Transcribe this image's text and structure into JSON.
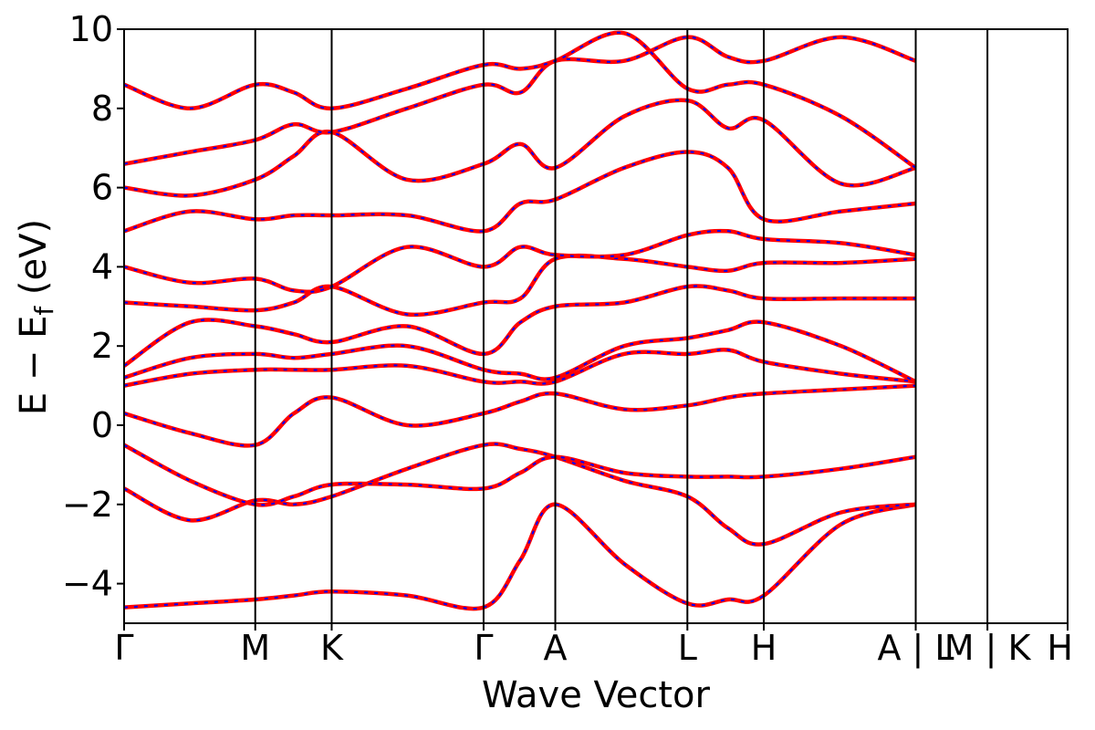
{
  "chart_data": {
    "type": "line",
    "title": "",
    "xlabel": "Wave Vector",
    "ylabel": {
      "main": "E − E",
      "subscript": "f",
      "unit": "(eV)"
    },
    "ylim": [
      -5,
      10
    ],
    "yticks": [
      {
        "value": 10,
        "label": "10"
      },
      {
        "value": 8,
        "label": "8"
      },
      {
        "value": 6,
        "label": "6"
      },
      {
        "value": 4,
        "label": "4"
      },
      {
        "value": 2,
        "label": "2"
      },
      {
        "value": 0,
        "label": "0"
      },
      {
        "value": -2,
        "label": "−2"
      },
      {
        "value": -4,
        "label": "−4"
      }
    ],
    "kpoints": [
      {
        "label": "Γ",
        "pos": 0.0
      },
      {
        "label": "M",
        "pos": 0.139
      },
      {
        "label": "K",
        "pos": 0.22
      },
      {
        "label": "Γ",
        "pos": 0.381
      },
      {
        "label": "A",
        "pos": 0.457
      },
      {
        "label": "L",
        "pos": 0.597
      },
      {
        "label": "H",
        "pos": 0.678
      },
      {
        "label": "A | L",
        "pos": 0.839
      },
      {
        "label": "M | K",
        "pos": 0.915
      },
      {
        "label": "H",
        "pos": 1.0
      }
    ],
    "grid": false,
    "legend": "none",
    "line_colors": {
      "primary": "#ff0000",
      "overlay": "#0000ff"
    },
    "bands": [
      {
        "name": "",
        "x": [
          0,
          0.07,
          0.139,
          0.18,
          0.22,
          0.3,
          0.381,
          0.42,
          0.457,
          0.53,
          0.597,
          0.64,
          0.678,
          0.76,
          0.839
        ],
        "y": [
          -4.6,
          -4.5,
          -4.4,
          -4.3,
          -4.2,
          -4.3,
          -4.6,
          -3.4,
          -2.0,
          -3.5,
          -4.5,
          -4.4,
          -4.3,
          -2.5,
          -2.0
        ]
      },
      {
        "name": "",
        "x": [
          0,
          0.07,
          0.139,
          0.18,
          0.22,
          0.3,
          0.381,
          0.42,
          0.457,
          0.53,
          0.597,
          0.64,
          0.678,
          0.76,
          0.839
        ],
        "y": [
          -1.6,
          -2.4,
          -1.9,
          -2.0,
          -1.8,
          -1.1,
          -0.5,
          -0.6,
          -0.8,
          -1.4,
          -1.8,
          -2.6,
          -3.0,
          -2.2,
          -2.0
        ]
      },
      {
        "name": "",
        "x": [
          0,
          0.07,
          0.139,
          0.18,
          0.22,
          0.3,
          0.381,
          0.42,
          0.457,
          0.53,
          0.597,
          0.64,
          0.678,
          0.76,
          0.839
        ],
        "y": [
          -0.5,
          -1.4,
          -2.0,
          -1.8,
          -1.5,
          -1.5,
          -1.6,
          -1.2,
          -0.8,
          -1.2,
          -1.3,
          -1.3,
          -1.3,
          -1.1,
          -0.8
        ]
      },
      {
        "name": "",
        "x": [
          0,
          0.07,
          0.139,
          0.18,
          0.22,
          0.3,
          0.381,
          0.42,
          0.457,
          0.53,
          0.597,
          0.64,
          0.678,
          0.76,
          0.839
        ],
        "y": [
          0.3,
          -0.2,
          -0.5,
          0.3,
          0.7,
          0.0,
          0.3,
          0.6,
          0.8,
          0.4,
          0.5,
          0.7,
          0.8,
          0.9,
          1.0
        ]
      },
      {
        "name": "",
        "x": [
          0,
          0.07,
          0.139,
          0.18,
          0.22,
          0.3,
          0.381,
          0.42,
          0.457,
          0.53,
          0.597,
          0.64,
          0.678,
          0.76,
          0.839
        ],
        "y": [
          1.0,
          1.3,
          1.4,
          1.4,
          1.4,
          1.5,
          1.1,
          1.1,
          1.1,
          1.8,
          1.8,
          1.9,
          1.6,
          1.3,
          1.1
        ]
      },
      {
        "name": "",
        "x": [
          0,
          0.07,
          0.139,
          0.18,
          0.22,
          0.3,
          0.381,
          0.42,
          0.457,
          0.53,
          0.597,
          0.64,
          0.678,
          0.76,
          0.839
        ],
        "y": [
          1.2,
          1.7,
          1.8,
          1.7,
          1.8,
          2.0,
          1.4,
          1.3,
          1.2,
          2.0,
          2.2,
          2.4,
          2.6,
          2.0,
          1.1
        ]
      },
      {
        "name": "",
        "x": [
          0,
          0.07,
          0.139,
          0.18,
          0.22,
          0.3,
          0.381,
          0.42,
          0.457,
          0.53,
          0.597,
          0.64,
          0.678,
          0.76,
          0.839
        ],
        "y": [
          1.5,
          2.6,
          2.5,
          2.3,
          2.1,
          2.5,
          1.8,
          2.6,
          3.0,
          3.1,
          3.5,
          3.4,
          3.2,
          3.2,
          3.2
        ]
      },
      {
        "name": "",
        "x": [
          0,
          0.07,
          0.139,
          0.18,
          0.22,
          0.3,
          0.381,
          0.42,
          0.457,
          0.53,
          0.597,
          0.64,
          0.678,
          0.76,
          0.839
        ],
        "y": [
          3.1,
          3.0,
          2.9,
          3.1,
          3.5,
          2.8,
          3.1,
          3.2,
          4.2,
          4.2,
          4.0,
          3.9,
          4.1,
          4.1,
          4.2
        ]
      },
      {
        "name": "",
        "x": [
          0,
          0.07,
          0.139,
          0.18,
          0.22,
          0.3,
          0.381,
          0.42,
          0.457,
          0.53,
          0.597,
          0.64,
          0.678,
          0.76,
          0.839
        ],
        "y": [
          4.0,
          3.6,
          3.7,
          3.4,
          3.5,
          4.5,
          4.0,
          4.5,
          4.3,
          4.3,
          4.8,
          4.9,
          4.7,
          4.6,
          4.3
        ]
      },
      {
        "name": "",
        "x": [
          0,
          0.07,
          0.139,
          0.18,
          0.22,
          0.3,
          0.381,
          0.42,
          0.457,
          0.53,
          0.597,
          0.64,
          0.678,
          0.76,
          0.839
        ],
        "y": [
          4.9,
          5.4,
          5.2,
          5.3,
          5.3,
          5.3,
          4.9,
          5.6,
          5.7,
          6.5,
          6.9,
          6.5,
          5.2,
          5.4,
          5.6
        ]
      },
      {
        "name": "",
        "x": [
          0,
          0.07,
          0.139,
          0.18,
          0.22,
          0.3,
          0.381,
          0.42,
          0.457,
          0.53,
          0.597,
          0.64,
          0.678,
          0.76,
          0.839
        ],
        "y": [
          6.0,
          5.8,
          6.2,
          6.8,
          7.4,
          6.2,
          6.6,
          7.1,
          6.5,
          7.8,
          8.2,
          7.5,
          7.7,
          6.1,
          6.5
        ]
      },
      {
        "name": "",
        "x": [
          0,
          0.07,
          0.139,
          0.18,
          0.22,
          0.3,
          0.381,
          0.42,
          0.457,
          0.53,
          0.597,
          0.64,
          0.678,
          0.76,
          0.839
        ],
        "y": [
          6.6,
          6.9,
          7.2,
          7.6,
          7.4,
          8.0,
          8.6,
          8.4,
          9.2,
          9.2,
          9.8,
          9.3,
          9.2,
          9.8,
          9.2
        ]
      },
      {
        "name": "",
        "x": [
          0,
          0.07,
          0.139,
          0.18,
          0.22,
          0.3,
          0.381,
          0.42,
          0.457,
          0.53,
          0.597,
          0.64,
          0.678,
          0.76,
          0.839
        ],
        "y": [
          8.6,
          8.0,
          8.6,
          8.4,
          8.0,
          8.5,
          9.1,
          9.0,
          9.2,
          9.9,
          8.5,
          8.6,
          8.6,
          7.8,
          6.5
        ]
      }
    ]
  }
}
